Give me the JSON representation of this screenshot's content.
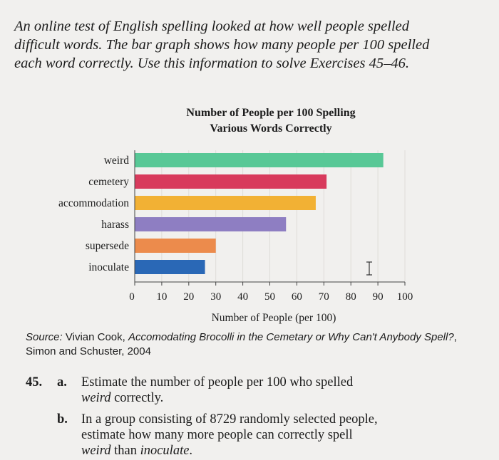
{
  "intro_text": "An online test of English spelling looked at how well people spelled difficult words. The bar graph shows how many people per 100 spelled each word correctly. Use this information to solve Exercises 45–46.",
  "chart_data": {
    "type": "bar",
    "orientation": "horizontal",
    "title_line1": "Number of People per 100 Spelling",
    "title_line2": "Various Words Correctly",
    "xlabel": "Number of People (per 100)",
    "categories": [
      "weird",
      "cemetery",
      "accommodation",
      "harass",
      "supersede",
      "inoculate"
    ],
    "values": [
      92,
      71,
      67,
      56,
      30,
      26
    ],
    "colors": [
      "#58c896",
      "#d83a5c",
      "#f2b134",
      "#8e7ec2",
      "#ec8b4c",
      "#2a68b6"
    ],
    "xlim": [
      0,
      100
    ],
    "xticks": [
      "0",
      "10",
      "20",
      "30",
      "40",
      "50",
      "60",
      "70",
      "80",
      "90",
      "100"
    ],
    "grid": true
  },
  "source": {
    "label": "Source:",
    "authors": "Vivian Cook,",
    "book": "Accomodating Brocolli in the Cemetary or Why Can't Anybody Spell?",
    "publisher": ", Simon and Schuster, 2004"
  },
  "exercise": {
    "number": "45.",
    "a_label": "a.",
    "a_text_1": "Estimate the number of people per 100 who spelled",
    "a_word": "weird",
    "a_text_2": "correctly.",
    "b_label": "b.",
    "b_text_1": "In a group consisting of 8729 randomly selected people,",
    "b_text_2": "estimate how many more people can correctly spell",
    "b_word_1": "weird",
    "b_text_3": "than",
    "b_word_2": "inoculate",
    "b_text_4": "."
  }
}
